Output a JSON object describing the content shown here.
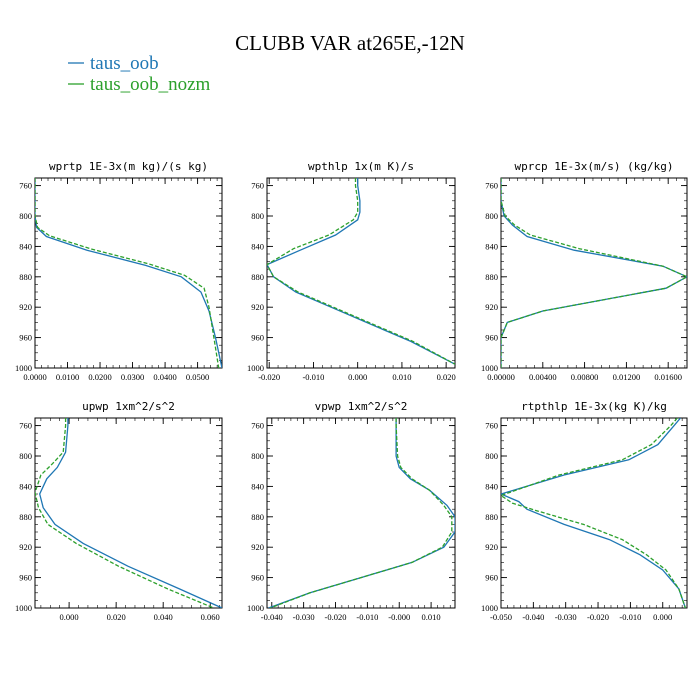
{
  "figure": {
    "title": "CLUBB VAR at265E,-12N",
    "legend": [
      {
        "label": "taus_oob",
        "color": "#1f77b4"
      },
      {
        "label": "taus_oob_nozm",
        "color": "#2ca02c"
      }
    ]
  },
  "chart_data": [
    {
      "type": "line",
      "title": "wprtp  1E-3x(m kg)/(s kg)",
      "xlim": [
        0.0,
        0.0575
      ],
      "ylim": [
        1000,
        750
      ],
      "xticks": [
        0.0,
        0.01,
        0.02,
        0.03,
        0.04,
        0.05
      ],
      "xticklabels": [
        "0.0000",
        "0.0100",
        "0.0200",
        "0.0300",
        "0.0400",
        "0.0500"
      ],
      "yticks": [
        760,
        800,
        840,
        880,
        920,
        960,
        1000
      ],
      "series": [
        {
          "name": "taus_oob",
          "color": "#1f77b4",
          "dashed": false,
          "x": [
            0.0,
            0.0,
            0.0,
            0.0,
            0.0005,
            0.0035,
            0.016,
            0.034,
            0.045,
            0.051,
            0.0535,
            0.0555,
            0.0575
          ],
          "y": [
            750,
            760,
            780,
            800,
            815,
            827,
            845,
            865,
            880,
            900,
            925,
            960,
            1000
          ]
        },
        {
          "name": "taus_oob_nozm",
          "color": "#2ca02c",
          "dashed": true,
          "x": [
            0.0,
            0.0,
            0.0,
            0.0,
            0.0008,
            0.0045,
            0.017,
            0.035,
            0.046,
            0.052,
            0.0535,
            0.055,
            0.0565
          ],
          "y": [
            750,
            760,
            780,
            800,
            815,
            826,
            843,
            863,
            878,
            895,
            920,
            960,
            1000
          ]
        }
      ]
    },
    {
      "type": "line",
      "title": "wpthlp  1x(m K)/s",
      "xlim": [
        -0.0205,
        0.022
      ],
      "ylim": [
        1000,
        750
      ],
      "xticks": [
        -0.02,
        -0.01,
        0.0,
        0.01,
        0.02
      ],
      "xticklabels": [
        "-0.020",
        "-0.010",
        "0.000",
        "0.010",
        "0.020"
      ],
      "yticks": [
        760,
        800,
        840,
        880,
        920,
        960,
        1000
      ],
      "series": [
        {
          "name": "taus_oob",
          "color": "#1f77b4",
          "dashed": false,
          "x": [
            0.0,
            0.0,
            0.0005,
            0.0005,
            0.0,
            -0.005,
            -0.013,
            -0.0205,
            -0.019,
            -0.014,
            -0.006,
            0.002,
            0.012,
            0.022
          ],
          "y": [
            750,
            760,
            780,
            795,
            805,
            825,
            845,
            864,
            880,
            900,
            920,
            940,
            965,
            995
          ]
        },
        {
          "name": "taus_oob_nozm",
          "color": "#2ca02c",
          "dashed": true,
          "x": [
            -0.0005,
            -0.0005,
            0.0,
            0.0,
            -0.001,
            -0.0065,
            -0.0145,
            -0.0205,
            -0.019,
            -0.0135,
            -0.0055,
            0.0025,
            0.0125,
            0.022
          ],
          "y": [
            750,
            760,
            780,
            795,
            805,
            825,
            843,
            864,
            880,
            900,
            920,
            940,
            965,
            995
          ]
        }
      ]
    },
    {
      "type": "line",
      "title": "wprcp  1E-3x(m/s) (kg/kg)",
      "xlim": [
        0.0,
        0.0178
      ],
      "ylim": [
        1000,
        750
      ],
      "xticks": [
        0.0,
        0.004,
        0.008,
        0.012,
        0.016
      ],
      "xticklabels": [
        "0.00000",
        "0.00400",
        "0.00800",
        "0.01200",
        "0.01600"
      ],
      "yticks": [
        760,
        800,
        840,
        880,
        920,
        960,
        1000
      ],
      "series": [
        {
          "name": "taus_oob",
          "color": "#1f77b4",
          "dashed": false,
          "x": [
            0.0,
            0.0,
            0.0,
            0.0003,
            0.0011,
            0.0025,
            0.007,
            0.0155,
            0.0178,
            0.0158,
            0.004,
            0.0006,
            0.0,
            0.0
          ],
          "y": [
            750,
            760,
            780,
            800,
            812,
            827,
            845,
            866,
            880,
            895,
            925,
            940,
            960,
            1000
          ]
        },
        {
          "name": "taus_oob_nozm",
          "color": "#2ca02c",
          "dashed": true,
          "x": [
            0.0,
            0.0,
            0.0,
            0.0004,
            0.0013,
            0.0028,
            0.0075,
            0.0155,
            0.0178,
            0.0158,
            0.004,
            0.0006,
            0.0,
            0.0
          ],
          "y": [
            750,
            760,
            780,
            800,
            812,
            825,
            843,
            866,
            880,
            895,
            925,
            940,
            960,
            1000
          ]
        }
      ]
    },
    {
      "type": "line",
      "title": "upwp  1xm^2/s^2",
      "xlim": [
        -0.0145,
        0.065
      ],
      "ylim": [
        1000,
        750
      ],
      "xticks": [
        0.0,
        0.02,
        0.04,
        0.06
      ],
      "xticklabels": [
        "0.000",
        "0.020",
        "0.040",
        "0.060"
      ],
      "yticks": [
        760,
        800,
        840,
        880,
        920,
        960,
        1000
      ],
      "series": [
        {
          "name": "taus_oob",
          "color": "#1f77b4",
          "dashed": false,
          "x": [
            -0.0005,
            -0.0005,
            -0.0015,
            -0.005,
            -0.0095,
            -0.0125,
            -0.011,
            -0.006,
            0.006,
            0.025,
            0.047,
            0.065
          ],
          "y": [
            750,
            760,
            795,
            815,
            830,
            850,
            868,
            890,
            915,
            945,
            975,
            1000
          ]
        },
        {
          "name": "taus_oob_nozm",
          "color": "#2ca02c",
          "dashed": true,
          "x": [
            -0.0015,
            -0.0015,
            -0.0025,
            -0.007,
            -0.012,
            -0.0145,
            -0.013,
            -0.009,
            0.003,
            0.021,
            0.042,
            0.0615
          ],
          "y": [
            750,
            760,
            795,
            810,
            825,
            848,
            868,
            890,
            915,
            945,
            975,
            1000
          ]
        }
      ]
    },
    {
      "type": "line",
      "title": "vpwp  1xm^2/s^2",
      "xlim": [
        -0.0415,
        0.0175
      ],
      "ylim": [
        1000,
        750
      ],
      "xticks": [
        -0.04,
        -0.03,
        -0.02,
        -0.01,
        0.0,
        0.01
      ],
      "xticklabels": [
        "-0.040",
        "-0.030",
        "-0.020",
        "-0.010",
        "-0.000",
        "0.010"
      ],
      "yticks": [
        760,
        800,
        840,
        880,
        920,
        960,
        1000
      ],
      "series": [
        {
          "name": "taus_oob",
          "color": "#1f77b4",
          "dashed": false,
          "x": [
            -0.001,
            -0.001,
            -0.001,
            0.0,
            0.0035,
            0.0095,
            0.015,
            0.0175,
            0.0175,
            0.014,
            0.004,
            -0.012,
            -0.028,
            -0.041
          ],
          "y": [
            750,
            760,
            800,
            815,
            830,
            845,
            865,
            880,
            900,
            920,
            940,
            960,
            980,
            1000
          ]
        },
        {
          "name": "taus_oob_nozm",
          "color": "#2ca02c",
          "dashed": true,
          "x": [
            -0.001,
            -0.001,
            -0.0005,
            0.0005,
            0.004,
            0.0095,
            0.014,
            0.0165,
            0.0165,
            0.0135,
            0.004,
            -0.012,
            -0.028,
            -0.0405
          ],
          "y": [
            750,
            760,
            800,
            815,
            830,
            845,
            865,
            880,
            900,
            920,
            940,
            960,
            980,
            1000
          ]
        }
      ]
    },
    {
      "type": "line",
      "title": "rtpthlp  1E-3x(kg K)/kg",
      "xlim": [
        -0.05,
        0.0075
      ],
      "ylim": [
        1000,
        750
      ],
      "xticks": [
        -0.05,
        -0.04,
        -0.03,
        -0.02,
        -0.01,
        0.0
      ],
      "xticklabels": [
        "-0.050",
        "-0.040",
        "-0.030",
        "-0.020",
        "-0.010",
        "0.000"
      ],
      "yticks": [
        760,
        800,
        840,
        880,
        920,
        960,
        1000
      ],
      "series": [
        {
          "name": "taus_oob",
          "color": "#1f77b4",
          "dashed": false,
          "x": [
            0.0055,
            0.0035,
            -0.0015,
            -0.0105,
            -0.0305,
            -0.05,
            -0.0445,
            -0.042,
            -0.0305,
            -0.0165,
            -0.007,
            0.0,
            0.005,
            0.007
          ],
          "y": [
            750,
            760,
            785,
            805,
            825,
            850,
            860,
            870,
            890,
            910,
            930,
            950,
            975,
            1000
          ]
        },
        {
          "name": "taus_oob_nozm",
          "color": "#2ca02c",
          "dashed": true,
          "x": [
            0.0045,
            0.0025,
            -0.0035,
            -0.0125,
            -0.032,
            -0.05,
            -0.0465,
            -0.039,
            -0.0245,
            -0.0125,
            -0.005,
            0.001,
            0.005,
            0.007
          ],
          "y": [
            750,
            760,
            785,
            805,
            825,
            852,
            862,
            872,
            890,
            910,
            930,
            950,
            975,
            1000
          ]
        }
      ]
    }
  ]
}
